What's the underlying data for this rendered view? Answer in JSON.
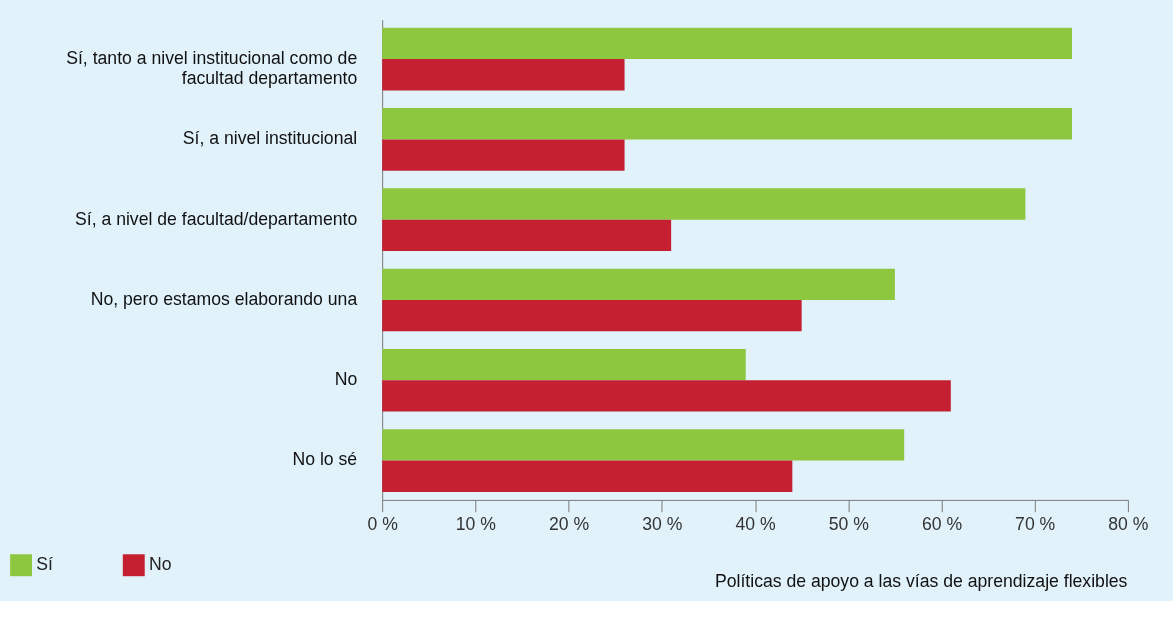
{
  "chart_data": {
    "type": "bar",
    "orientation": "horizontal",
    "categories": [
      "Sí, tanto a nivel institucional como de facultad departamento",
      "Sí, a nivel institucional",
      "Sí, a nivel de facultad/departamento",
      "No, pero estamos elaborando una",
      "No",
      "No lo sé"
    ],
    "series": [
      {
        "name": "Sí",
        "color": "#8dc63f",
        "values": [
          74,
          74,
          69,
          55,
          39,
          56
        ]
      },
      {
        "name": "No",
        "color": "#c42032",
        "values": [
          26,
          26,
          31,
          45,
          61,
          44
        ]
      }
    ],
    "xlabel": "Políticas de apoyo a las vías de aprendizaje flexibles",
    "xlim": [
      0,
      80
    ],
    "xticks": [
      {
        "value": 0,
        "label": "0 %"
      },
      {
        "value": 10,
        "label": "10 %"
      },
      {
        "value": 20,
        "label": "20 %"
      },
      {
        "value": 30,
        "label": "30 %"
      },
      {
        "value": 40,
        "label": "40 %"
      },
      {
        "value": 50,
        "label": "50 %"
      },
      {
        "value": 60,
        "label": "60 %"
      },
      {
        "value": 70,
        "label": "70 %"
      },
      {
        "value": 80,
        "label": "80 %"
      }
    ],
    "grid": false,
    "legend": "bottom left"
  }
}
